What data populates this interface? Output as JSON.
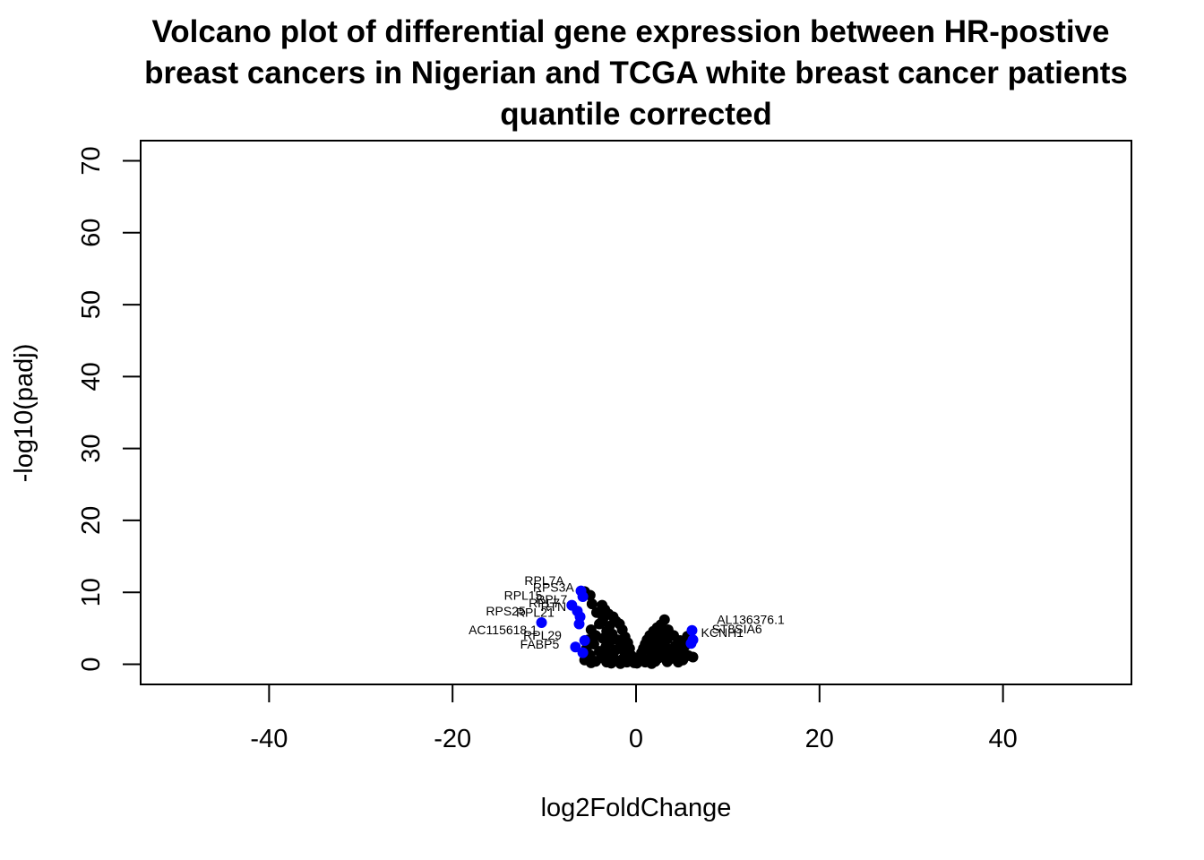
{
  "chart_data": {
    "type": "scatter",
    "title": [
      "Volcano plot of differential gene expression between HR-postive",
      "breast cancers in Nigerian and TCGA white breast cancer patients",
      "quantile corrected"
    ],
    "xlabel": "log2FoldChange",
    "ylabel": "-log10(padj)",
    "xlim": [
      -54,
      54
    ],
    "ylim": [
      -2.8,
      72.8
    ],
    "xticks": [
      -40,
      -20,
      0,
      20,
      40
    ],
    "yticks": [
      0,
      10,
      20,
      30,
      40,
      50,
      60,
      70
    ],
    "grid": false,
    "legend": "none",
    "colors": {
      "background": "#000000",
      "highlighted": "#0000ff"
    },
    "series": [
      {
        "color": "#000000",
        "points": [
          [
            -5.6,
            10.1
          ],
          [
            -5.0,
            9.6
          ],
          [
            -4.8,
            8.4
          ],
          [
            -3.7,
            8.2
          ],
          [
            -3.4,
            7.6
          ],
          [
            -4.3,
            7.2
          ],
          [
            -3.0,
            7.0
          ],
          [
            -2.5,
            6.6
          ],
          [
            -3.6,
            6.3
          ],
          [
            -2.2,
            6.0
          ],
          [
            -1.8,
            5.6
          ],
          [
            -2.9,
            5.3
          ],
          [
            -4.0,
            5.6
          ],
          [
            -4.9,
            4.8
          ],
          [
            -3.2,
            4.6
          ],
          [
            -1.5,
            4.8
          ],
          [
            -2.6,
            4.2
          ],
          [
            -4.4,
            4.0
          ],
          [
            -1.2,
            3.8
          ],
          [
            -3.6,
            3.6
          ],
          [
            -5.2,
            3.4
          ],
          [
            -2.0,
            3.4
          ],
          [
            -0.9,
            3.0
          ],
          [
            -2.9,
            3.0
          ],
          [
            -4.6,
            2.8
          ],
          [
            -1.6,
            2.6
          ],
          [
            -3.3,
            2.4
          ],
          [
            -5.4,
            2.2
          ],
          [
            -0.7,
            2.2
          ],
          [
            -2.2,
            2.0
          ],
          [
            -4.0,
            1.8
          ],
          [
            -1.2,
            1.6
          ],
          [
            -3.0,
            1.5
          ],
          [
            -5.0,
            1.3
          ],
          [
            -0.5,
            1.2
          ],
          [
            -2.5,
            1.1
          ],
          [
            -3.8,
            0.9
          ],
          [
            -1.4,
            0.8
          ],
          [
            -5.6,
            0.6
          ],
          [
            -0.3,
            0.6
          ],
          [
            -2.1,
            0.5
          ],
          [
            -4.4,
            0.4
          ],
          [
            -1.0,
            0.3
          ],
          [
            -3.2,
            0.3
          ],
          [
            -0.2,
            0.2
          ],
          [
            -2.7,
            0.15
          ],
          [
            -4.9,
            0.2
          ],
          [
            -1.7,
            0.1
          ],
          [
            3.1,
            6.2
          ],
          [
            2.7,
            5.5
          ],
          [
            2.3,
            5.1
          ],
          [
            3.5,
            4.8
          ],
          [
            1.9,
            4.6
          ],
          [
            2.9,
            4.3
          ],
          [
            1.5,
            4.0
          ],
          [
            4.1,
            4.0
          ],
          [
            5.6,
            3.9
          ],
          [
            2.5,
            3.8
          ],
          [
            3.4,
            3.5
          ],
          [
            1.2,
            3.4
          ],
          [
            4.8,
            3.3
          ],
          [
            2.0,
            3.1
          ],
          [
            3.0,
            2.9
          ],
          [
            1.0,
            2.8
          ],
          [
            4.3,
            2.6
          ],
          [
            5.3,
            2.5
          ],
          [
            2.3,
            2.4
          ],
          [
            0.8,
            2.2
          ],
          [
            3.7,
            2.1
          ],
          [
            1.5,
            2.0
          ],
          [
            4.9,
            1.9
          ],
          [
            2.8,
            1.7
          ],
          [
            0.6,
            1.6
          ],
          [
            3.3,
            1.5
          ],
          [
            1.9,
            1.3
          ],
          [
            4.4,
            1.2
          ],
          [
            5.7,
            1.2
          ],
          [
            6.2,
            1.0
          ],
          [
            0.4,
            1.0
          ],
          [
            2.5,
            0.9
          ],
          [
            3.8,
            0.8
          ],
          [
            1.3,
            0.7
          ],
          [
            5.1,
            0.6
          ],
          [
            0.3,
            0.5
          ],
          [
            2.1,
            0.4
          ],
          [
            3.4,
            0.35
          ],
          [
            1.0,
            0.3
          ],
          [
            4.6,
            0.3
          ],
          [
            0.1,
            0.15
          ],
          [
            1.7,
            0.1
          ]
        ]
      },
      {
        "color": "#0000ff",
        "points": [
          [
            -6.0,
            10.2
          ],
          [
            -5.8,
            9.4
          ],
          [
            -7.0,
            8.2
          ],
          [
            -6.4,
            7.4
          ],
          [
            -6.1,
            6.6
          ],
          [
            -10.3,
            5.8
          ],
          [
            -6.2,
            5.6
          ],
          [
            -5.6,
            3.3
          ],
          [
            -6.6,
            2.4
          ],
          [
            -5.8,
            1.6
          ],
          [
            6.1,
            4.7
          ],
          [
            6.2,
            3.4
          ],
          [
            6.0,
            2.9
          ]
        ]
      }
    ],
    "labels": [
      {
        "text": "RPL7A",
        "x": -10.0,
        "y": 11.0
      },
      {
        "text": "RPS3A",
        "x": -9.0,
        "y": 10.1
      },
      {
        "text": "RPL15",
        "x": -12.3,
        "y": 9.0
      },
      {
        "text": "RPL7",
        "x": -9.2,
        "y": 8.4
      },
      {
        "text": "RPL7",
        "x": -10.0,
        "y": 7.9
      },
      {
        "text": "RTN",
        "x": -9.0,
        "y": 7.4
      },
      {
        "text": "RPS25",
        "x": -14.2,
        "y": 6.8
      },
      {
        "text": "RPL21",
        "x": -11.0,
        "y": 6.6
      },
      {
        "text": "AC115618.1",
        "x": -14.5,
        "y": 4.2
      },
      {
        "text": "RPL29",
        "x": -10.2,
        "y": 3.4
      },
      {
        "text": "FABP5",
        "x": -10.5,
        "y": 2.2
      },
      {
        "text": "AL136376.1",
        "x": 12.5,
        "y": 5.6
      },
      {
        "text": "ST8SIA6",
        "x": 11.0,
        "y": 4.3
      },
      {
        "text": "KCNH1",
        "x": 9.4,
        "y": 3.8
      }
    ]
  }
}
